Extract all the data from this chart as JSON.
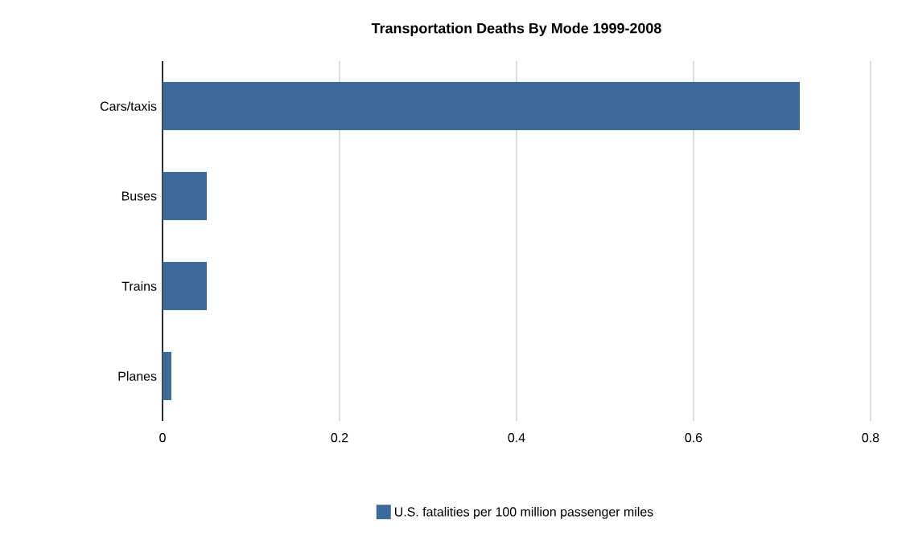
{
  "chart_data": {
    "type": "bar",
    "orientation": "horizontal",
    "title": "Transportation Deaths By Mode 1999-2008",
    "categories": [
      "Cars/taxis",
      "Buses",
      "Trains",
      "Planes"
    ],
    "series": [
      {
        "name": "U.S. fatalities per 100 million passenger miles",
        "color": "#3c6a9a",
        "values": [
          0.72,
          0.05,
          0.05,
          0.01
        ]
      }
    ],
    "xlim": [
      0,
      0.8
    ],
    "xticks": [
      0,
      0.2,
      0.4,
      0.6,
      0.8
    ],
    "grid": "x",
    "legend": "bottom"
  }
}
